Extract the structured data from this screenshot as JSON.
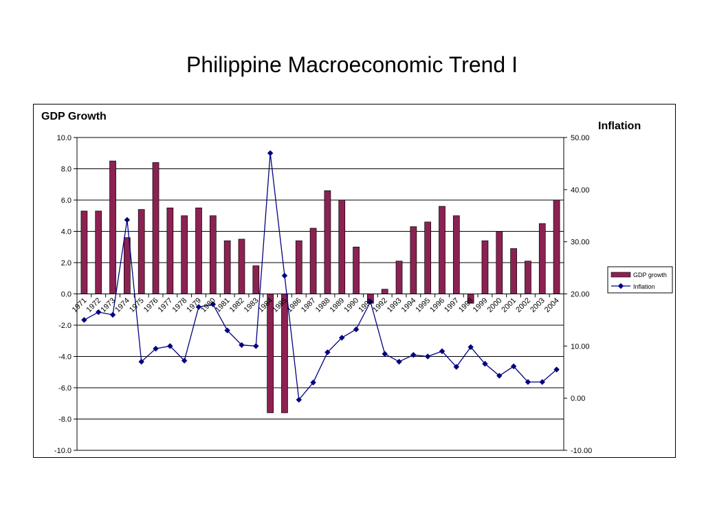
{
  "title": "Philippine Macroeconomic Trend I",
  "chart_data": {
    "type": "bar+line",
    "left_axis_title": "GDP Growth",
    "right_axis_title": "Inflation",
    "left_ylim": [
      -10,
      10
    ],
    "left_ticks": [
      "10.0",
      "8.0",
      "6.0",
      "4.0",
      "2.0",
      "0.0",
      "-2.0",
      "-4.0",
      "-6.0",
      "-8.0",
      "-10.0"
    ],
    "right_ylim": [
      -10,
      50
    ],
    "right_ticks": [
      "50.00",
      "40.00",
      "30.00",
      "20.00",
      "10.00",
      "0.00",
      "-10.00"
    ],
    "categories": [
      "1971",
      "1972",
      "1973",
      "1974",
      "1975",
      "1976",
      "1977",
      "1978",
      "1979",
      "1980",
      "1981",
      "1982",
      "1983",
      "1984",
      "1985",
      "1986",
      "1987",
      "1988",
      "1989",
      "1990",
      "1991",
      "1992",
      "1993",
      "1994",
      "1995",
      "1996",
      "1997",
      "1998",
      "1999",
      "2000",
      "2001",
      "2002",
      "2003",
      "2004"
    ],
    "series": [
      {
        "name": "GDP growth",
        "kind": "bar",
        "axis": "left",
        "color": "#8B2252",
        "values": [
          5.3,
          5.3,
          8.5,
          3.6,
          5.4,
          8.4,
          5.5,
          5.0,
          5.5,
          5.0,
          3.4,
          3.5,
          1.8,
          -7.6,
          -7.6,
          3.4,
          4.2,
          6.6,
          6.0,
          3.0,
          -0.6,
          0.3,
          2.1,
          4.3,
          4.6,
          5.6,
          5.0,
          -0.6,
          3.4,
          4.0,
          2.9,
          2.1,
          4.5,
          6.0
        ]
      },
      {
        "name": "Inflation",
        "kind": "line",
        "axis": "right",
        "color": "#000080",
        "values": [
          15.0,
          16.5,
          16.0,
          34.2,
          7.0,
          9.5,
          10.0,
          7.2,
          17.5,
          18.0,
          13.0,
          10.2,
          10.0,
          47.0,
          23.5,
          -0.3,
          3.0,
          8.8,
          11.6,
          13.2,
          18.5,
          8.5,
          7.0,
          8.3,
          8.0,
          9.0,
          6.0,
          9.8,
          6.6,
          4.3,
          6.1,
          3.1,
          3.1,
          5.5
        ]
      }
    ],
    "legend": {
      "position": "right",
      "items": [
        "GDP growth",
        "Inflation"
      ]
    },
    "grid": true
  }
}
